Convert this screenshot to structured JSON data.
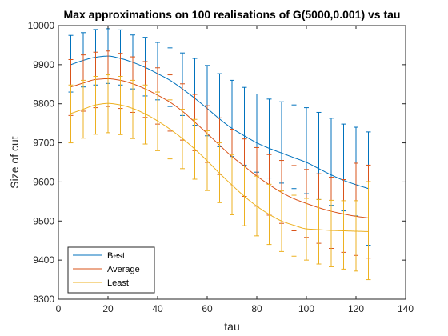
{
  "chart_data": {
    "type": "line",
    "title": "Max approximations on 100 realisations of G(5000,0.001) vs tau",
    "xlabel": "tau",
    "ylabel": "Size of cut",
    "xlim": [
      0,
      140
    ],
    "ylim": [
      9300,
      10000
    ],
    "xticks": [
      "0",
      "20",
      "40",
      "60",
      "80",
      "100",
      "120",
      "140"
    ],
    "yticks": [
      "9300",
      "9400",
      "9500",
      "9600",
      "9700",
      "9800",
      "9900",
      "10000"
    ],
    "grid": false,
    "legend_position": "bottom-left",
    "x": [
      5,
      10,
      15,
      20,
      25,
      30,
      35,
      40,
      45,
      50,
      55,
      60,
      65,
      70,
      75,
      80,
      85,
      90,
      95,
      100,
      105,
      110,
      115,
      120,
      125
    ],
    "series": [
      {
        "name": "Best",
        "color": "#0072BD",
        "values": [
          9900,
          9911,
          9919,
          9922,
          9916,
          9906,
          9893,
          9877,
          9860,
          9838,
          9814,
          9788,
          9761,
          9737,
          9718,
          9700,
          9686,
          9674,
          9662,
          9650,
          9634,
          9618,
          9604,
          9593,
          9583
        ],
        "err_low": [
          9830,
          9843,
          9848,
          9852,
          9848,
          9838,
          9820,
          9810,
          9793,
          9770,
          9745,
          9718,
          9690,
          9665,
          9643,
          9625,
          9610,
          9597,
          9583,
          9570,
          9555,
          9540,
          9526,
          9513,
          9438
        ],
        "err_high": [
          9975,
          9982,
          9990,
          9992,
          9989,
          9976,
          9970,
          9957,
          9943,
          9930,
          9916,
          9898,
          9877,
          9860,
          9842,
          9825,
          9812,
          9805,
          9797,
          9790,
          9778,
          9763,
          9748,
          9740,
          9728
        ]
      },
      {
        "name": "Average",
        "color": "#D95319",
        "values": [
          9843,
          9853,
          9862,
          9864,
          9860,
          9851,
          9838,
          9822,
          9804,
          9781,
          9753,
          9724,
          9694,
          9665,
          9640,
          9615,
          9593,
          9573,
          9557,
          9545,
          9534,
          9525,
          9518,
          9512,
          9508
        ],
        "err_low": [
          9770,
          9781,
          9790,
          9793,
          9788,
          9778,
          9765,
          9748,
          9730,
          9707,
          9680,
          9650,
          9619,
          9590,
          9563,
          9538,
          9515,
          9494,
          9475,
          9458,
          9443,
          9430,
          9420,
          9412,
          9405
        ],
        "err_high": [
          9913,
          9925,
          9932,
          9935,
          9929,
          9920,
          9908,
          9892,
          9874,
          9851,
          9824,
          9795,
          9764,
          9735,
          9710,
          9688,
          9670,
          9655,
          9642,
          9632,
          9621,
          9612,
          9606,
          9648,
          9643
        ]
      },
      {
        "name": "Least",
        "color": "#EDB120",
        "values": [
          9775,
          9786,
          9797,
          9801,
          9797,
          9788,
          9774,
          9756,
          9735,
          9711,
          9684,
          9654,
          9622,
          9592,
          9563,
          9538,
          9517,
          9500,
          9489,
          9480,
          9478,
          9476,
          9475,
          9474,
          9473
        ],
        "err_low": [
          9700,
          9712,
          9722,
          9726,
          9721,
          9711,
          9697,
          9680,
          9659,
          9634,
          9607,
          9578,
          9547,
          9516,
          9488,
          9462,
          9440,
          9422,
          9410,
          9400,
          9390,
          9383,
          9377,
          9372,
          9350
        ],
        "err_high": [
          9848,
          9860,
          9870,
          9874,
          9870,
          9860,
          9848,
          9830,
          9810,
          9786,
          9760,
          9731,
          9700,
          9670,
          9641,
          9615,
          9594,
          9577,
          9566,
          9558,
          9555,
          9553,
          9552,
          9552,
          9601
        ]
      }
    ]
  }
}
